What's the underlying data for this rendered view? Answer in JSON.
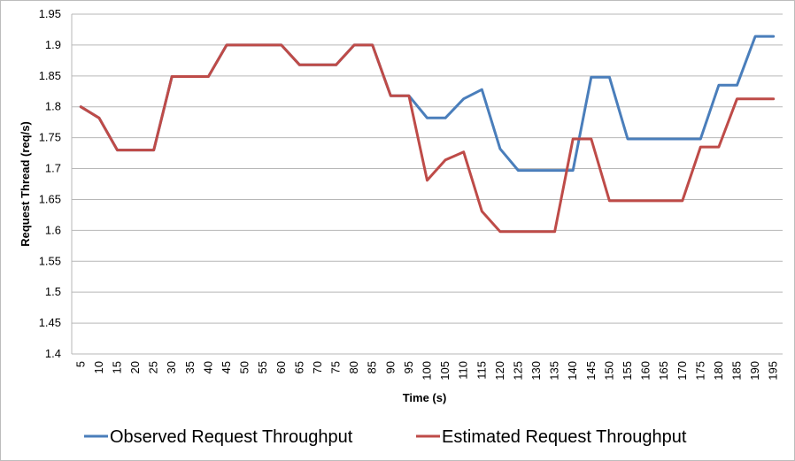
{
  "chart_data": {
    "type": "line",
    "title": "",
    "xlabel": "Time (s)",
    "ylabel": "Request Thread (req/s)",
    "ylim": [
      1.4,
      1.95
    ],
    "y_ticks": [
      "1.4",
      "1.45",
      "1.5",
      "1.55",
      "1.6",
      "1.65",
      "1.7",
      "1.75",
      "1.8",
      "1.85",
      "1.9",
      "1.95"
    ],
    "grid": true,
    "legend_position": "bottom",
    "x": [
      5,
      10,
      15,
      20,
      25,
      30,
      35,
      40,
      45,
      50,
      55,
      60,
      65,
      70,
      75,
      80,
      85,
      90,
      95,
      100,
      105,
      110,
      115,
      120,
      125,
      130,
      135,
      140,
      145,
      150,
      155,
      160,
      165,
      170,
      175,
      180,
      185,
      190,
      195
    ],
    "series": [
      {
        "name": "Observed Request Throughput",
        "color": "#4a7ebb",
        "values": [
          1.8,
          1.782,
          1.73,
          1.73,
          1.73,
          1.849,
          1.849,
          1.849,
          1.9,
          1.9,
          1.9,
          1.9,
          1.868,
          1.868,
          1.868,
          1.9,
          1.9,
          1.818,
          1.818,
          1.782,
          1.782,
          1.813,
          1.828,
          1.732,
          1.697,
          1.697,
          1.697,
          1.697,
          1.848,
          1.848,
          1.748,
          1.748,
          1.748,
          1.748,
          1.748,
          1.835,
          1.835,
          1.914,
          1.914
        ]
      },
      {
        "name": "Estimated Request Throughput",
        "color": "#be4b48",
        "values": [
          1.8,
          1.782,
          1.73,
          1.73,
          1.73,
          1.849,
          1.849,
          1.849,
          1.9,
          1.9,
          1.9,
          1.9,
          1.868,
          1.868,
          1.868,
          1.9,
          1.9,
          1.818,
          1.818,
          1.681,
          1.714,
          1.727,
          1.631,
          1.598,
          1.598,
          1.598,
          1.598,
          1.748,
          1.748,
          1.648,
          1.648,
          1.648,
          1.648,
          1.648,
          1.735,
          1.735,
          1.813,
          1.813,
          1.813
        ]
      }
    ]
  }
}
